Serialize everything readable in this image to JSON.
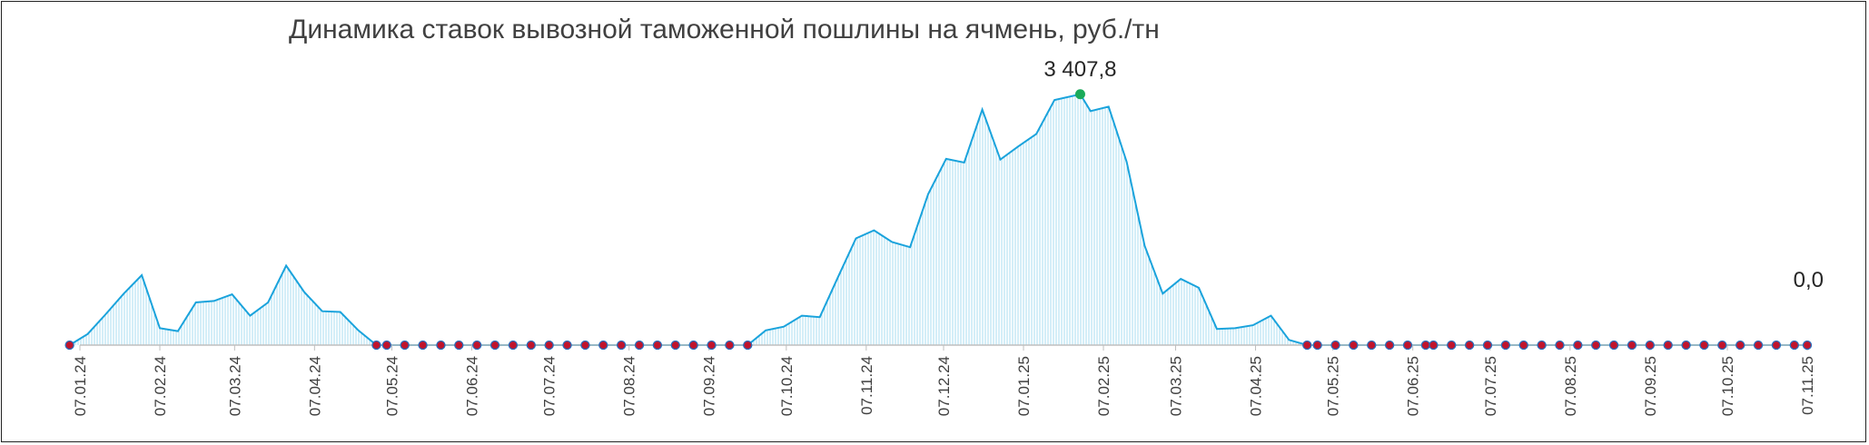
{
  "chart_data": {
    "type": "area",
    "title": "Динамика ставок вывозной таможенной пошлины на ячмень, руб./тн",
    "xlabel": "",
    "ylabel": "",
    "ylim": [
      0,
      3800
    ],
    "grid": false,
    "tick_labels": [
      "07.01.24",
      "07.02.24",
      "07.03.24",
      "07.04.24",
      "07.05.24",
      "07.06.24",
      "07.07.24",
      "07.08.24",
      "07.09.24",
      "07.10.24",
      "07.11.24",
      "07.12.24",
      "07.01.25",
      "07.02.25",
      "07.03.25",
      "07.04.25",
      "07.05.25",
      "07.06.25",
      "07.07.25",
      "07.08.25",
      "07.09.25",
      "07.10.25",
      "07.11.25"
    ],
    "annotations": [
      {
        "label": "3 407,8",
        "date": "2025-01-29",
        "value": 3407.8
      },
      {
        "label": "0,0",
        "date": "2025-11-07",
        "value": 0
      }
    ],
    "colors": {
      "line": "#1aa3dc",
      "fill": "#a9dcf1",
      "zero_marker": "#c0142c",
      "zero_marker_edge": "#2a6ebc",
      "max_marker": "#1aaa5a"
    },
    "series": [
      {
        "points": [
          [
            "2024-01-03",
            0
          ],
          [
            "2024-01-10",
            150
          ],
          [
            "2024-01-17",
            420
          ],
          [
            "2024-01-24",
            700
          ],
          [
            "2024-01-31",
            950
          ],
          [
            "2024-02-07",
            230
          ],
          [
            "2024-02-14",
            190
          ],
          [
            "2024-02-21",
            580
          ],
          [
            "2024-02-28",
            600
          ],
          [
            "2024-03-06",
            690
          ],
          [
            "2024-03-13",
            400
          ],
          [
            "2024-03-20",
            580
          ],
          [
            "2024-03-27",
            1080
          ],
          [
            "2024-04-03",
            720
          ],
          [
            "2024-04-10",
            460
          ],
          [
            "2024-04-17",
            450
          ],
          [
            "2024-04-24",
            200
          ],
          [
            "2024-05-01",
            0
          ],
          [
            "2024-05-05",
            0
          ],
          [
            "2024-05-19",
            0
          ],
          [
            "2024-06-02",
            0
          ],
          [
            "2024-06-16",
            0
          ],
          [
            "2024-06-30",
            0
          ],
          [
            "2024-07-14",
            0
          ],
          [
            "2024-07-28",
            0
          ],
          [
            "2024-08-11",
            0
          ],
          [
            "2024-08-25",
            0
          ],
          [
            "2024-09-08",
            0
          ],
          [
            "2024-09-22",
            0
          ],
          [
            "2024-09-29",
            200
          ],
          [
            "2024-10-06",
            250
          ],
          [
            "2024-10-13",
            400
          ],
          [
            "2024-10-20",
            380
          ],
          [
            "2024-10-27",
            920
          ],
          [
            "2024-11-03",
            1450
          ],
          [
            "2024-11-10",
            1560
          ],
          [
            "2024-11-17",
            1400
          ],
          [
            "2024-11-24",
            1330
          ],
          [
            "2024-12-01",
            2050
          ],
          [
            "2024-12-08",
            2530
          ],
          [
            "2024-12-15",
            2480
          ],
          [
            "2024-12-22",
            3200
          ],
          [
            "2024-12-29",
            2520
          ],
          [
            "2025-01-05",
            2700
          ],
          [
            "2025-01-12",
            2870
          ],
          [
            "2025-01-19",
            3330
          ],
          [
            "2025-01-29",
            3407.8
          ],
          [
            "2025-02-02",
            3180
          ],
          [
            "2025-02-09",
            3240
          ],
          [
            "2025-02-16",
            2490
          ],
          [
            "2025-02-23",
            1350
          ],
          [
            "2025-03-02",
            700
          ],
          [
            "2025-03-09",
            900
          ],
          [
            "2025-03-16",
            780
          ],
          [
            "2025-03-23",
            220
          ],
          [
            "2025-03-30",
            230
          ],
          [
            "2025-04-06",
            270
          ],
          [
            "2025-04-13",
            400
          ],
          [
            "2025-04-20",
            70
          ],
          [
            "2025-04-27",
            0
          ],
          [
            "2025-05-04",
            0
          ],
          [
            "2025-05-18",
            0
          ],
          [
            "2025-06-01",
            0
          ],
          [
            "2025-06-15",
            0
          ],
          [
            "2025-06-29",
            0
          ],
          [
            "2025-07-13",
            0
          ],
          [
            "2025-07-27",
            0
          ],
          [
            "2025-08-10",
            0
          ],
          [
            "2025-08-24",
            0
          ],
          [
            "2025-09-07",
            0
          ],
          [
            "2025-09-21",
            0
          ],
          [
            "2025-10-05",
            0
          ],
          [
            "2025-10-19",
            0
          ],
          [
            "2025-11-07",
            0
          ]
        ],
        "zero_markers": [
          "2024-01-03",
          "2024-05-01",
          "2024-05-05",
          "2024-05-12",
          "2024-05-19",
          "2024-05-26",
          "2024-06-02",
          "2024-06-09",
          "2024-06-16",
          "2024-06-23",
          "2024-06-30",
          "2024-07-07",
          "2024-07-14",
          "2024-07-21",
          "2024-07-28",
          "2024-08-04",
          "2024-08-11",
          "2024-08-18",
          "2024-08-25",
          "2024-09-01",
          "2024-09-08",
          "2024-09-15",
          "2024-09-22",
          "2025-04-27",
          "2025-05-01",
          "2025-05-08",
          "2025-05-15",
          "2025-05-22",
          "2025-05-29",
          "2025-06-05",
          "2025-06-12",
          "2025-06-15",
          "2025-06-22",
          "2025-06-29",
          "2025-07-06",
          "2025-07-13",
          "2025-07-20",
          "2025-07-27",
          "2025-08-03",
          "2025-08-10",
          "2025-08-17",
          "2025-08-24",
          "2025-08-31",
          "2025-09-07",
          "2025-09-14",
          "2025-09-21",
          "2025-09-28",
          "2025-10-05",
          "2025-10-12",
          "2025-10-19",
          "2025-10-26",
          "2025-11-02",
          "2025-11-07"
        ]
      }
    ]
  }
}
